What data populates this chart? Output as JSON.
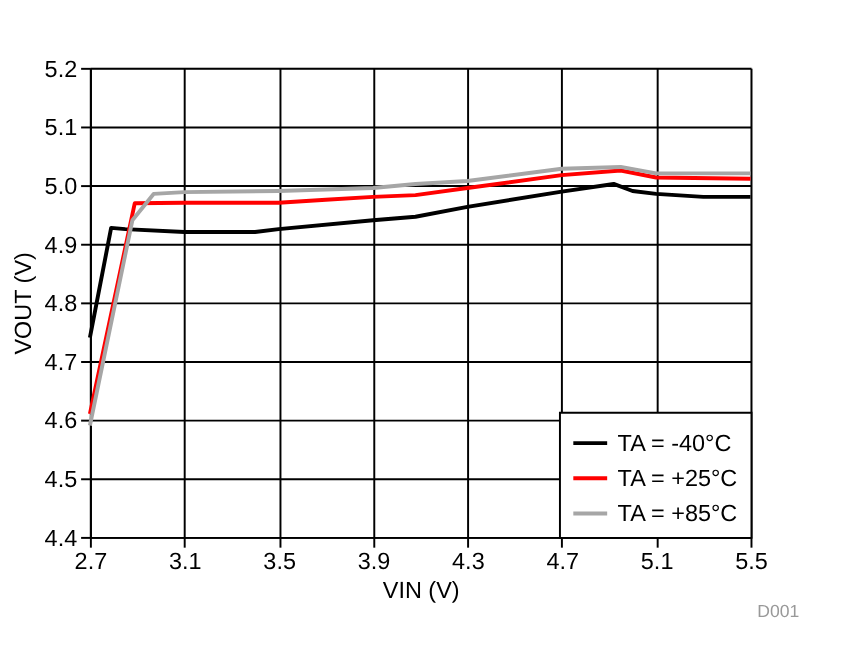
{
  "chart_data": {
    "type": "line",
    "xlabel": "VIN (V)",
    "ylabel": "VOUT (V)",
    "xlim": [
      2.7,
      5.5
    ],
    "xticks": [
      2.7,
      3.1,
      3.5,
      3.9,
      4.3,
      4.7,
      5.1,
      5.5
    ],
    "ylim": [
      4.4,
      5.2
    ],
    "yticks": [
      4.4,
      4.5,
      4.6,
      4.7,
      4.8,
      4.9,
      {
        "value": 5.0,
        "label": "5.0"
      },
      5.1,
      5.2
    ],
    "grid": true,
    "legend": "bottom right",
    "line_style": "solid",
    "marker": "none",
    "annotations": [
      "D001"
    ],
    "series": [
      {
        "name": "TA = -40°C",
        "color": "#000000",
        "x": [
          2.7,
          2.79,
          2.85,
          3.1,
          3.4,
          3.5,
          3.9,
          4.08,
          4.3,
          4.7,
          4.92,
          5.0,
          5.1,
          5.3,
          5.5
        ],
        "values": [
          4.74,
          4.927,
          4.925,
          4.92,
          4.92,
          4.925,
          4.94,
          4.946,
          4.963,
          4.989,
          5.002,
          4.99,
          4.985,
          4.98,
          4.98
        ]
      },
      {
        "name": "TA = +25°C",
        "color": "#ff0000",
        "x": [
          2.7,
          2.89,
          3.1,
          3.5,
          3.7,
          3.9,
          4.08,
          4.3,
          4.7,
          4.95,
          5.1,
          5.5
        ],
        "values": [
          4.61,
          4.969,
          4.97,
          4.97,
          4.975,
          4.98,
          4.983,
          4.995,
          5.017,
          5.025,
          5.013,
          5.011
        ]
      },
      {
        "name": "TA = +85°C",
        "color": "#a6a6a6",
        "x": [
          2.7,
          2.88,
          2.97,
          3.1,
          3.5,
          3.9,
          4.08,
          4.3,
          4.7,
          4.95,
          5.1,
          5.5
        ],
        "values": [
          4.59,
          4.94,
          4.985,
          4.988,
          4.99,
          4.995,
          5.002,
          5.007,
          5.028,
          5.031,
          5.02,
          5.02
        ]
      }
    ]
  }
}
